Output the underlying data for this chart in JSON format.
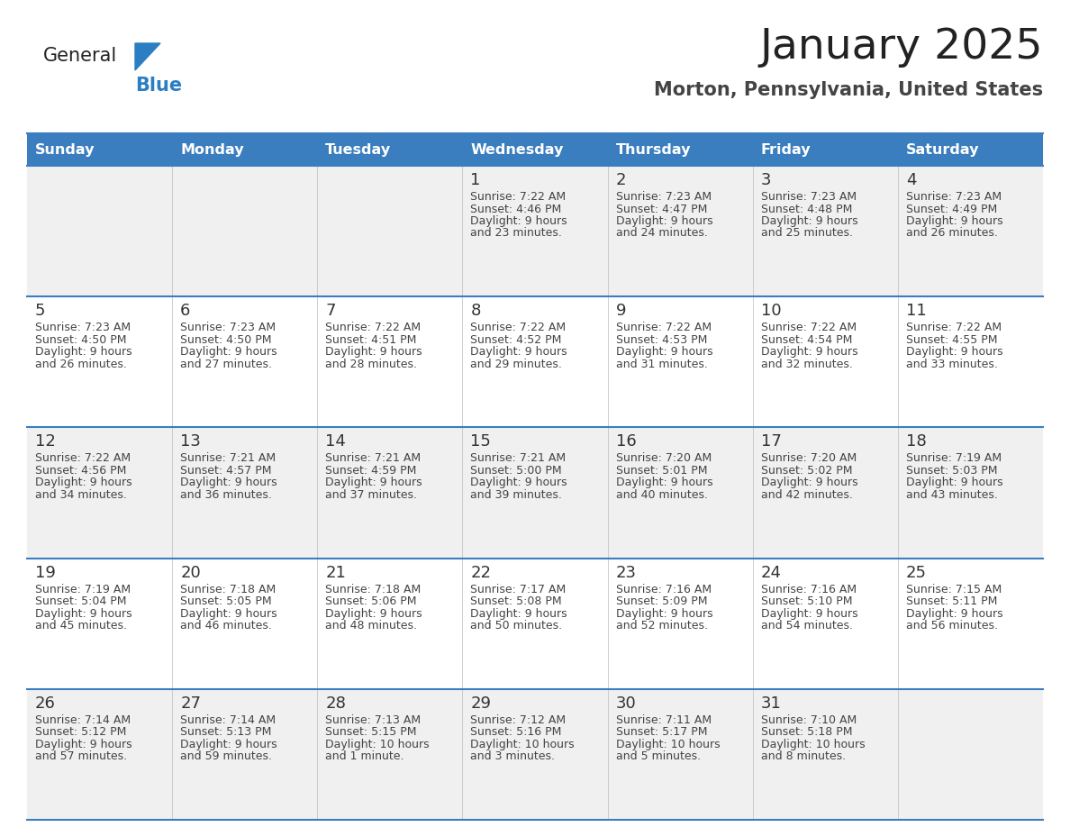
{
  "title": "January 2025",
  "subtitle": "Morton, Pennsylvania, United States",
  "days_of_week": [
    "Sunday",
    "Monday",
    "Tuesday",
    "Wednesday",
    "Thursday",
    "Friday",
    "Saturday"
  ],
  "header_bg": "#3a7ebf",
  "header_text": "#ffffff",
  "row_bg_odd": "#f0f0f0",
  "row_bg_even": "#ffffff",
  "border_color": "#3a7ebf",
  "text_color": "#444444",
  "title_color": "#222222",
  "subtitle_color": "#444444",
  "day_number_color": "#333333",
  "logo_general_color": "#222222",
  "logo_blue_color": "#2b7ec1",
  "calendar_data": [
    [
      null,
      null,
      null,
      {
        "day": 1,
        "sunrise": "7:22 AM",
        "sunset": "4:46 PM",
        "daylight_h": "9 hours",
        "daylight_m": "and 23 minutes."
      },
      {
        "day": 2,
        "sunrise": "7:23 AM",
        "sunset": "4:47 PM",
        "daylight_h": "9 hours",
        "daylight_m": "and 24 minutes."
      },
      {
        "day": 3,
        "sunrise": "7:23 AM",
        "sunset": "4:48 PM",
        "daylight_h": "9 hours",
        "daylight_m": "and 25 minutes."
      },
      {
        "day": 4,
        "sunrise": "7:23 AM",
        "sunset": "4:49 PM",
        "daylight_h": "9 hours",
        "daylight_m": "and 26 minutes."
      }
    ],
    [
      {
        "day": 5,
        "sunrise": "7:23 AM",
        "sunset": "4:50 PM",
        "daylight_h": "9 hours",
        "daylight_m": "and 26 minutes."
      },
      {
        "day": 6,
        "sunrise": "7:23 AM",
        "sunset": "4:50 PM",
        "daylight_h": "9 hours",
        "daylight_m": "and 27 minutes."
      },
      {
        "day": 7,
        "sunrise": "7:22 AM",
        "sunset": "4:51 PM",
        "daylight_h": "9 hours",
        "daylight_m": "and 28 minutes."
      },
      {
        "day": 8,
        "sunrise": "7:22 AM",
        "sunset": "4:52 PM",
        "daylight_h": "9 hours",
        "daylight_m": "and 29 minutes."
      },
      {
        "day": 9,
        "sunrise": "7:22 AM",
        "sunset": "4:53 PM",
        "daylight_h": "9 hours",
        "daylight_m": "and 31 minutes."
      },
      {
        "day": 10,
        "sunrise": "7:22 AM",
        "sunset": "4:54 PM",
        "daylight_h": "9 hours",
        "daylight_m": "and 32 minutes."
      },
      {
        "day": 11,
        "sunrise": "7:22 AM",
        "sunset": "4:55 PM",
        "daylight_h": "9 hours",
        "daylight_m": "and 33 minutes."
      }
    ],
    [
      {
        "day": 12,
        "sunrise": "7:22 AM",
        "sunset": "4:56 PM",
        "daylight_h": "9 hours",
        "daylight_m": "and 34 minutes."
      },
      {
        "day": 13,
        "sunrise": "7:21 AM",
        "sunset": "4:57 PM",
        "daylight_h": "9 hours",
        "daylight_m": "and 36 minutes."
      },
      {
        "day": 14,
        "sunrise": "7:21 AM",
        "sunset": "4:59 PM",
        "daylight_h": "9 hours",
        "daylight_m": "and 37 minutes."
      },
      {
        "day": 15,
        "sunrise": "7:21 AM",
        "sunset": "5:00 PM",
        "daylight_h": "9 hours",
        "daylight_m": "and 39 minutes."
      },
      {
        "day": 16,
        "sunrise": "7:20 AM",
        "sunset": "5:01 PM",
        "daylight_h": "9 hours",
        "daylight_m": "and 40 minutes."
      },
      {
        "day": 17,
        "sunrise": "7:20 AM",
        "sunset": "5:02 PM",
        "daylight_h": "9 hours",
        "daylight_m": "and 42 minutes."
      },
      {
        "day": 18,
        "sunrise": "7:19 AM",
        "sunset": "5:03 PM",
        "daylight_h": "9 hours",
        "daylight_m": "and 43 minutes."
      }
    ],
    [
      {
        "day": 19,
        "sunrise": "7:19 AM",
        "sunset": "5:04 PM",
        "daylight_h": "9 hours",
        "daylight_m": "and 45 minutes."
      },
      {
        "day": 20,
        "sunrise": "7:18 AM",
        "sunset": "5:05 PM",
        "daylight_h": "9 hours",
        "daylight_m": "and 46 minutes."
      },
      {
        "day": 21,
        "sunrise": "7:18 AM",
        "sunset": "5:06 PM",
        "daylight_h": "9 hours",
        "daylight_m": "and 48 minutes."
      },
      {
        "day": 22,
        "sunrise": "7:17 AM",
        "sunset": "5:08 PM",
        "daylight_h": "9 hours",
        "daylight_m": "and 50 minutes."
      },
      {
        "day": 23,
        "sunrise": "7:16 AM",
        "sunset": "5:09 PM",
        "daylight_h": "9 hours",
        "daylight_m": "and 52 minutes."
      },
      {
        "day": 24,
        "sunrise": "7:16 AM",
        "sunset": "5:10 PM",
        "daylight_h": "9 hours",
        "daylight_m": "and 54 minutes."
      },
      {
        "day": 25,
        "sunrise": "7:15 AM",
        "sunset": "5:11 PM",
        "daylight_h": "9 hours",
        "daylight_m": "and 56 minutes."
      }
    ],
    [
      {
        "day": 26,
        "sunrise": "7:14 AM",
        "sunset": "5:12 PM",
        "daylight_h": "9 hours",
        "daylight_m": "and 57 minutes."
      },
      {
        "day": 27,
        "sunrise": "7:14 AM",
        "sunset": "5:13 PM",
        "daylight_h": "9 hours",
        "daylight_m": "and 59 minutes."
      },
      {
        "day": 28,
        "sunrise": "7:13 AM",
        "sunset": "5:15 PM",
        "daylight_h": "10 hours",
        "daylight_m": "and 1 minute."
      },
      {
        "day": 29,
        "sunrise": "7:12 AM",
        "sunset": "5:16 PM",
        "daylight_h": "10 hours",
        "daylight_m": "and 3 minutes."
      },
      {
        "day": 30,
        "sunrise": "7:11 AM",
        "sunset": "5:17 PM",
        "daylight_h": "10 hours",
        "daylight_m": "and 5 minutes."
      },
      {
        "day": 31,
        "sunrise": "7:10 AM",
        "sunset": "5:18 PM",
        "daylight_h": "10 hours",
        "daylight_m": "and 8 minutes."
      },
      null
    ]
  ]
}
